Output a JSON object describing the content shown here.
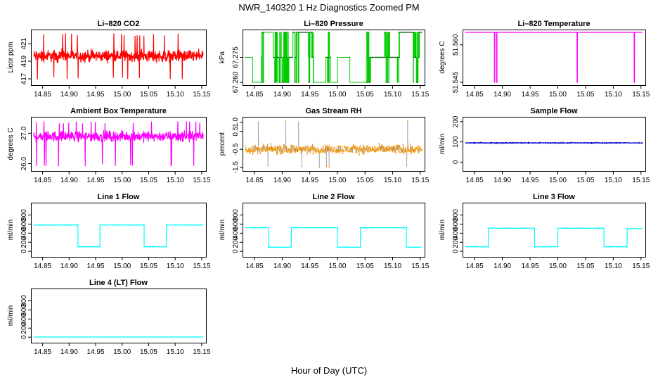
{
  "figure": {
    "title": "NWR_140320  1 Hz Diagnostics Zoomed PM",
    "xlabel": "Hour of Day (UTC)"
  },
  "chart_data": [
    {
      "id": "co2",
      "type": "line",
      "title": "Li–820 CO2",
      "ylabel": "Licor ppm",
      "color": "#ff0000",
      "x_ticks": [
        "14.85",
        "14.90",
        "14.95",
        "15.00",
        "15.05",
        "15.10",
        "15.15"
      ],
      "x_tick_values": [
        14.85,
        14.9,
        14.95,
        15.0,
        15.05,
        15.1,
        15.15
      ],
      "xlim": [
        14.8333,
        15.1528
      ],
      "y_ticks": [
        "417",
        "419",
        "421"
      ],
      "y_tick_values": [
        417,
        419,
        421
      ],
      "ylim": [
        416.6,
        422.3
      ],
      "series": {
        "kind": "noise",
        "center": 419.6,
        "amp": 1.0,
        "hi": 422.2,
        "lo": 416.9,
        "spike_prob": 0.03
      }
    },
    {
      "id": "pressure",
      "type": "step",
      "title": "Li–820 Pressure",
      "ylabel": "kPa",
      "color": "#00cc00",
      "x_ticks": [
        "14.85",
        "14.90",
        "14.95",
        "15.00",
        "15.05",
        "15.10",
        "15.15"
      ],
      "x_tick_values": [
        14.85,
        14.9,
        14.95,
        15.0,
        15.05,
        15.1,
        15.15
      ],
      "xlim": [
        14.8333,
        15.1528
      ],
      "y_ticks": [
        "67.260",
        "67.275"
      ],
      "y_tick_values": [
        67.26,
        67.275
      ],
      "ylim": [
        67.26,
        67.29
      ],
      "series": {
        "kind": "levels",
        "levels": [
          67.26,
          67.275,
          67.29
        ],
        "base": [
          [
            14.8333,
            14.8465,
            67.275
          ],
          [
            14.8465,
            14.8625,
            67.26
          ],
          [
            14.8625,
            14.8665,
            67.275
          ],
          [
            14.8665,
            14.884,
            67.29
          ],
          [
            14.884,
            14.9195,
            67.275
          ],
          [
            14.9195,
            14.957,
            67.29
          ],
          [
            14.957,
            14.979,
            67.26
          ],
          [
            14.979,
            14.9875,
            67.275
          ],
          [
            14.9875,
            15.0,
            67.26
          ],
          [
            15.0,
            15.0225,
            67.275
          ],
          [
            15.0225,
            15.0525,
            67.26
          ],
          [
            15.0525,
            15.06,
            67.275
          ],
          [
            15.06,
            15.1,
            67.275
          ],
          [
            15.1,
            15.1125,
            67.275
          ],
          [
            15.1125,
            15.1528,
            67.29
          ]
        ],
        "burst": [
          [
            14.8625,
            14.8665
          ],
          [
            14.886,
            14.912
          ],
          [
            14.9195,
            14.93
          ],
          [
            14.947,
            14.957
          ],
          [
            14.982,
            14.986
          ],
          [
            15.0525,
            15.0605
          ],
          [
            15.085,
            15.095
          ],
          [
            15.108,
            15.112
          ],
          [
            15.137,
            15.148
          ]
        ]
      }
    },
    {
      "id": "temperature",
      "type": "line",
      "title": "Li–820 Temperature",
      "ylabel": "degrees C",
      "color": "#ff00ff",
      "x_ticks": [
        "14.85",
        "14.90",
        "14.95",
        "15.00",
        "15.05",
        "15.10",
        "15.15"
      ],
      "x_tick_values": [
        14.85,
        14.9,
        14.95,
        15.0,
        15.05,
        15.1,
        15.15
      ],
      "xlim": [
        14.8333,
        15.1528
      ],
      "y_ticks": [
        "51.545",
        "51.560"
      ],
      "y_tick_values": [
        51.545,
        51.56
      ],
      "ylim": [
        51.545,
        51.565
      ],
      "series": {
        "kind": "constant_drops",
        "value": 51.565,
        "low": 51.545,
        "drops": [
          14.886,
          14.89,
          15.035,
          15.138
        ]
      }
    },
    {
      "id": "ambient",
      "type": "line",
      "title": "Ambient Box Temperature",
      "ylabel": "degrees C",
      "color": "#ff00ff",
      "x_ticks": [
        "14.85",
        "14.90",
        "14.95",
        "15.00",
        "15.05",
        "15.10",
        "15.15"
      ],
      "x_tick_values": [
        14.85,
        14.9,
        14.95,
        15.0,
        15.05,
        15.1,
        15.15
      ],
      "xlim": [
        14.8333,
        15.1528
      ],
      "y_ticks": [
        "26.0",
        "27.0"
      ],
      "y_tick_values": [
        26.0,
        27.0
      ],
      "ylim": [
        25.85,
        27.45
      ],
      "series": {
        "kind": "noise",
        "center": 26.9,
        "amp": 0.25,
        "hi": 27.4,
        "lo": 25.9,
        "spike_prob": 0.04
      }
    },
    {
      "id": "rh",
      "type": "scatter",
      "title": "Gas Stream RH",
      "ylabel": "percent",
      "color": "#ff9900",
      "x_ticks": [
        "14.85",
        "14.90",
        "14.95",
        "15.00",
        "15.05",
        "15.10",
        "15.15"
      ],
      "x_tick_values": [
        14.85,
        14.9,
        14.95,
        15.0,
        15.05,
        15.1,
        15.15
      ],
      "xlim": [
        14.8333,
        15.1528
      ],
      "y_ticks": [
        "-1.5",
        "-0.5",
        "0.5",
        "1.0"
      ],
      "y_tick_values": [
        -1.5,
        -0.5,
        0.5,
        1.0
      ],
      "ylim": [
        -1.55,
        1.15
      ],
      "series": {
        "kind": "noise",
        "center": -0.5,
        "amp": 0.35,
        "hi": 1.1,
        "lo": -1.5,
        "spike_prob": 0.02,
        "line_color": "#000000"
      }
    },
    {
      "id": "sample",
      "type": "line",
      "title": "Sample Flow",
      "ylabel": "ml/min",
      "color": "#0000cc",
      "x_ticks": [
        "14.85",
        "14.90",
        "14.95",
        "15.00",
        "15.05",
        "15.10",
        "15.15"
      ],
      "x_tick_values": [
        14.85,
        14.9,
        14.95,
        15.0,
        15.05,
        15.1,
        15.15
      ],
      "xlim": [
        14.8333,
        15.1528
      ],
      "y_ticks": [
        "0",
        "100",
        "200"
      ],
      "y_tick_values": [
        0,
        100,
        200
      ],
      "ylim": [
        -30,
        210
      ],
      "series": {
        "kind": "flat",
        "value": 95,
        "amp": 3
      }
    },
    {
      "id": "line1",
      "type": "line",
      "title": "Line 1 Flow",
      "ylabel": "ml/min",
      "color": "#00ffff",
      "x_ticks": [
        "14.85",
        "14.90",
        "14.95",
        "15.00",
        "15.05",
        "15.10",
        "15.15"
      ],
      "x_tick_values": [
        14.85,
        14.9,
        14.95,
        15.0,
        15.05,
        15.1,
        15.15
      ],
      "xlim": [
        14.8333,
        15.1528
      ],
      "y_ticks": [
        "0",
        "200",
        "400",
        "600",
        "800"
      ],
      "y_tick_values": [
        0,
        200,
        400,
        600,
        800
      ],
      "ylim": [
        -60,
        1010
      ],
      "series": {
        "kind": "square",
        "amp": 8,
        "segments": [
          [
            14.8333,
            14.9165,
            580
          ],
          [
            14.9165,
            14.958,
            100
          ],
          [
            14.958,
            15.0415,
            580
          ],
          [
            15.0415,
            15.0833,
            100
          ],
          [
            15.0833,
            15.1528,
            580
          ]
        ]
      }
    },
    {
      "id": "line2",
      "type": "line",
      "title": "Line 2 Flow",
      "ylabel": "ml/min",
      "color": "#00ffff",
      "x_ticks": [
        "14.85",
        "14.90",
        "14.95",
        "15.00",
        "15.05",
        "15.10",
        "15.15"
      ],
      "x_tick_values": [
        14.85,
        14.9,
        14.95,
        15.0,
        15.05,
        15.1,
        15.15
      ],
      "xlim": [
        14.8333,
        15.1528
      ],
      "y_ticks": [
        "0",
        "200",
        "400",
        "600",
        "800"
      ],
      "y_tick_values": [
        0,
        200,
        400,
        600,
        800
      ],
      "ylim": [
        -60,
        1010
      ],
      "series": {
        "kind": "square",
        "amp": 8,
        "segments": [
          [
            14.8333,
            14.8748,
            520
          ],
          [
            14.8748,
            14.9165,
            90
          ],
          [
            14.9165,
            15.0,
            520
          ],
          [
            15.0,
            15.0415,
            90
          ],
          [
            15.0415,
            15.125,
            520
          ],
          [
            15.125,
            15.1528,
            90
          ]
        ]
      }
    },
    {
      "id": "line3",
      "type": "line",
      "title": "Line 3 Flow",
      "ylabel": "ml/min",
      "color": "#00ffff",
      "x_ticks": [
        "14.85",
        "14.90",
        "14.95",
        "15.00",
        "15.05",
        "15.10",
        "15.15"
      ],
      "x_tick_values": [
        14.85,
        14.9,
        14.95,
        15.0,
        15.05,
        15.1,
        15.15
      ],
      "xlim": [
        14.8333,
        15.1528
      ],
      "y_ticks": [
        "0",
        "200",
        "400",
        "600",
        "800"
      ],
      "y_tick_values": [
        0,
        200,
        400,
        600,
        800
      ],
      "ylim": [
        -60,
        1010
      ],
      "series": {
        "kind": "square",
        "amp": 8,
        "segments": [
          [
            14.8333,
            14.8748,
            100
          ],
          [
            14.8748,
            14.958,
            510
          ],
          [
            14.958,
            15.0,
            100
          ],
          [
            15.0,
            15.0833,
            510
          ],
          [
            15.0833,
            15.125,
            100
          ],
          [
            15.125,
            15.1528,
            500
          ]
        ]
      }
    },
    {
      "id": "line4",
      "type": "line",
      "title": "Line 4 (LT) Flow",
      "ylabel": "ml/min",
      "color": "#00ffff",
      "x_ticks": [
        "14.85",
        "14.90",
        "14.95",
        "15.00",
        "15.05",
        "15.10",
        "15.15"
      ],
      "x_tick_values": [
        14.85,
        14.9,
        14.95,
        15.0,
        15.05,
        15.1,
        15.15
      ],
      "xlim": [
        14.8333,
        15.1528
      ],
      "y_ticks": [
        "0",
        "200",
        "400",
        "600",
        "800"
      ],
      "y_tick_values": [
        0,
        200,
        400,
        600,
        800
      ],
      "ylim": [
        -60,
        1010
      ],
      "series": {
        "kind": "flat",
        "value": 3,
        "amp": 1
      }
    }
  ]
}
